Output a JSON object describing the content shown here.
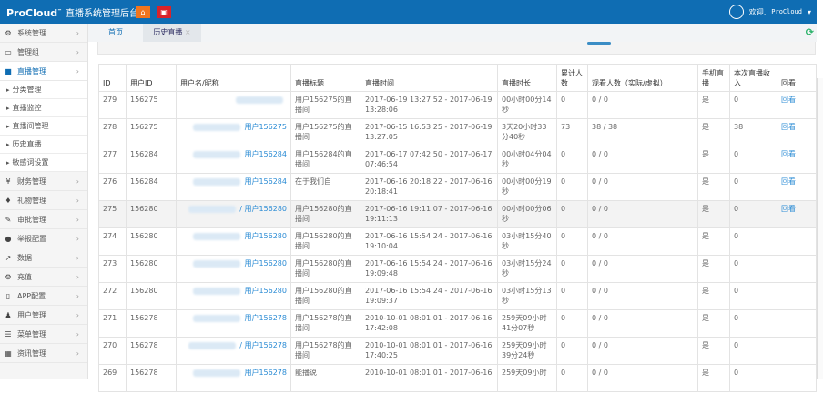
{
  "header": {
    "brand": "ProCloud",
    "tm": "™",
    "title": "直播系统管理后台",
    "home_icon": "home-icon",
    "exit_icon": "power-icon",
    "welcome": "欢迎,",
    "username": "ProCloud"
  },
  "colors": {
    "topbar": "#0f6db3",
    "link": "#2a8bd4",
    "refresh": "#2db36b"
  },
  "sidebar": {
    "items": [
      {
        "icon": "⚙",
        "label": "系统管理"
      },
      {
        "icon": "▭",
        "label": "管理组"
      },
      {
        "icon": "■",
        "label": "直播管理",
        "active": true
      }
    ],
    "sub": [
      "分类管理",
      "直播监控",
      "直播间管理",
      "历史直播",
      "敏感词设置"
    ],
    "items2": [
      {
        "icon": "¥",
        "label": "财务管理"
      },
      {
        "icon": "♦",
        "label": "礼物管理"
      },
      {
        "icon": "✎",
        "label": "审批管理"
      },
      {
        "icon": "●",
        "label": "举报配置"
      },
      {
        "icon": "↗",
        "label": "数据"
      },
      {
        "icon": "⚙",
        "label": "充值"
      },
      {
        "icon": "▯",
        "label": "APP配置"
      },
      {
        "icon": "♟",
        "label": "用户管理"
      },
      {
        "icon": "☰",
        "label": "菜单管理"
      },
      {
        "icon": "▦",
        "label": "资讯管理"
      }
    ]
  },
  "tabs": [
    "首页",
    "历史直播"
  ],
  "table": {
    "headers": [
      "ID",
      "用户ID",
      "用户名/昵称",
      "直播标题",
      "直播时间",
      "直播时长",
      "累计人数",
      "观看人数（实际/虚拟）",
      "手机直播",
      "本次直播收入",
      "回看"
    ],
    "rows": [
      [
        "279",
        "156275",
        "",
        "用户156275的直播间",
        "2017-06-19 13:27:52 - 2017-06-19 13:28:06",
        "00小时00分14秒",
        "0",
        "0 / 0",
        "是",
        "0",
        "回看"
      ],
      [
        "278",
        "156275",
        "用户156275",
        "用户156275的直播间",
        "2017-06-15 16:53:25 - 2017-06-19 13:27:05",
        "3天20小时33分40秒",
        "73",
        "38 / 38",
        "是",
        "38",
        "回看"
      ],
      [
        "277",
        "156284",
        "用户156284",
        "用户156284的直播间",
        "2017-06-17 07:42:50 - 2017-06-17 07:46:54",
        "00小时04分04秒",
        "0",
        "0 / 0",
        "是",
        "0",
        "回看"
      ],
      [
        "276",
        "156284",
        "用户156284",
        "在于我们自",
        "2017-06-16 20:18:22 - 2017-06-16 20:18:41",
        "00小时00分19秒",
        "0",
        "0 / 0",
        "是",
        "0",
        "回看"
      ],
      [
        "275",
        "156280",
        "/ 用户156280",
        "用户156280的直播间",
        "2017-06-16 19:11:07 - 2017-06-16 19:11:13",
        "00小时00分06秒",
        "0",
        "0 / 0",
        "是",
        "0",
        "回看"
      ],
      [
        "274",
        "156280",
        "用户156280",
        "用户156280的直播间",
        "2017-06-16 15:54:24 - 2017-06-16 19:10:04",
        "03小时15分40秒",
        "0",
        "0 / 0",
        "是",
        "0",
        ""
      ],
      [
        "273",
        "156280",
        "用户156280",
        "用户156280的直播间",
        "2017-06-16 15:54:24 - 2017-06-16 19:09:48",
        "03小时15分24秒",
        "0",
        "0 / 0",
        "是",
        "0",
        ""
      ],
      [
        "272",
        "156280",
        "用户156280",
        "用户156280的直播间",
        "2017-06-16 15:54:24 - 2017-06-16 19:09:37",
        "03小时15分13秒",
        "0",
        "0 / 0",
        "是",
        "0",
        ""
      ],
      [
        "271",
        "156278",
        "用户156278",
        "用户156278的直播间",
        "2010-10-01 08:01:01 - 2017-06-16 17:42:08",
        "259天09小时41分07秒",
        "0",
        "0 / 0",
        "是",
        "0",
        ""
      ],
      [
        "270",
        "156278",
        "/ 用户156278",
        "用户156278的直播间",
        "2010-10-01 08:01:01 - 2017-06-16 17:40:25",
        "259天09小时39分24秒",
        "0",
        "0 / 0",
        "是",
        "0",
        ""
      ],
      [
        "269",
        "156278",
        "用户156278",
        "能播说",
        "2010-10-01 08:01:01 - 2017-06-16",
        "259天09小时",
        "0",
        "0 / 0",
        "是",
        "0",
        ""
      ]
    ]
  }
}
